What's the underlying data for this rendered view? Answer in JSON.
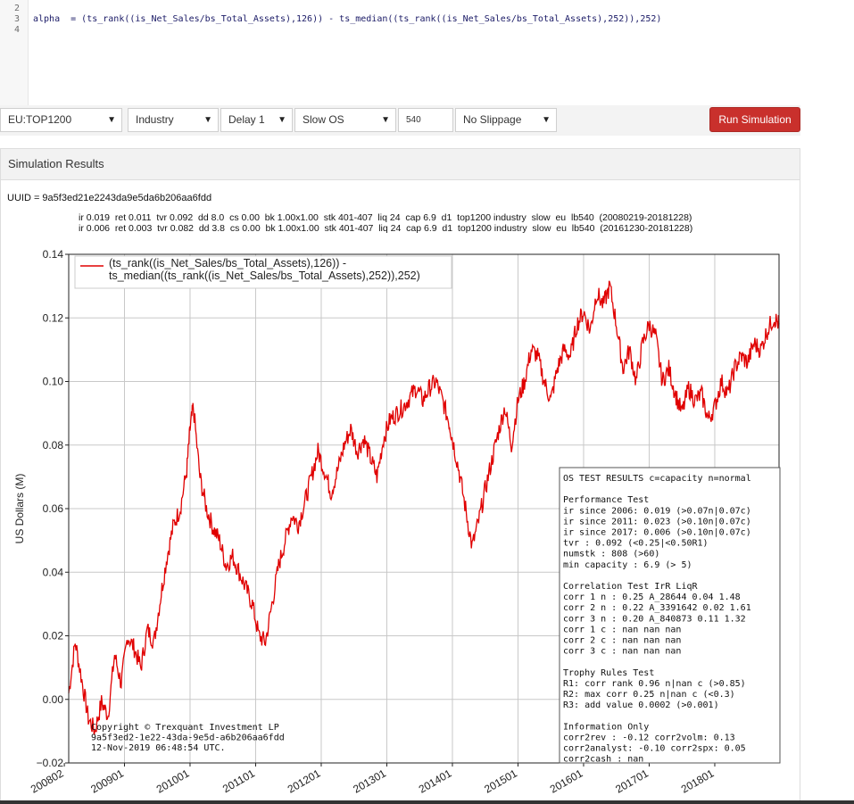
{
  "editor": {
    "line_numbers": [
      "2",
      "3",
      "4"
    ],
    "code_line": "alpha  = (ts_rank((is_Net_Sales/bs_Total_Assets),126)) - ts_median((ts_rank((is_Net_Sales/bs_Total_Assets),252)),252)"
  },
  "toolbar": {
    "universe": "EU:TOP1200",
    "neutralization": "Industry",
    "delay": "Delay 1",
    "mode": "Slow OS",
    "lookback": "540",
    "slippage": "No Slippage",
    "run_label": "Run Simulation",
    "run_color": "#c9302c"
  },
  "results": {
    "header": "Simulation Results",
    "uuid": "UUID = 9a5f3ed21e2243da9e5da6b206aa6fdd",
    "stats_line1": "ir 0.019  ret 0.011  tvr 0.092  dd 8.0  cs 0.00  bk 1.00x1.00  stk 401-407  liq 24  cap 6.9  d1  top1200 industry  slow  eu  lb540  (20080219-20181228)",
    "stats_line2": "ir 0.006  ret 0.003  tvr 0.082  dd 3.8  cs 0.00  bk 1.00x1.00  stk 401-407  liq 24  cap 6.9  d1  top1200 industry  slow  eu  lb540  (20161230-20181228)"
  },
  "chart_data": {
    "type": "line",
    "title": "",
    "xlabel": "",
    "ylabel": "US Dollars (M)",
    "ylim": [
      -0.02,
      0.14
    ],
    "yticks": [
      "0.14",
      "0.12",
      "0.10",
      "0.08",
      "0.06",
      "0.04",
      "0.02",
      "0.00",
      "−0.02"
    ],
    "xticks": [
      "200802",
      "200901",
      "201001",
      "201101",
      "201201",
      "201301",
      "201401",
      "201501",
      "201601",
      "201701",
      "201801"
    ],
    "grid": true,
    "legend_position": "top-left",
    "legend_lines": [
      "(ts_rank((is_Net_Sales/bs_Total_Assets),126)) -",
      "ts_median((ts_rank((is_Net_Sales/bs_Total_Assets),252)),252)"
    ],
    "line_color": "#e00000",
    "series": [
      {
        "x": [
          2008.15,
          2008.25,
          2008.35,
          2008.45,
          2008.55,
          2008.65,
          2008.75,
          2008.85,
          2008.95,
          2009.05,
          2009.15,
          2009.25,
          2009.35,
          2009.45,
          2009.55,
          2009.65,
          2009.75,
          2009.85,
          2009.95,
          2010.0,
          2010.05,
          2010.15,
          2010.25,
          2010.35,
          2010.45,
          2010.55,
          2010.65,
          2010.75,
          2010.85,
          2010.95,
          2011.05,
          2011.15,
          2011.25,
          2011.35,
          2011.45,
          2011.55,
          2011.65,
          2011.75,
          2011.85,
          2011.95,
          2012.05,
          2012.15,
          2012.25,
          2012.35,
          2012.45,
          2012.55,
          2012.65,
          2012.75,
          2012.85,
          2012.95,
          2013.05,
          2013.15,
          2013.25,
          2013.35,
          2013.45,
          2013.55,
          2013.65,
          2013.75,
          2013.85,
          2013.95,
          2014.0,
          2014.1,
          2014.2,
          2014.3,
          2014.4,
          2014.5,
          2014.6,
          2014.7,
          2014.8,
          2014.9,
          2015.0,
          2015.1,
          2015.2,
          2015.3,
          2015.4,
          2015.5,
          2015.6,
          2015.7,
          2015.8,
          2015.9,
          2016.0,
          2016.1,
          2016.2,
          2016.3,
          2016.4,
          2016.5,
          2016.6,
          2016.7,
          2016.8,
          2016.9,
          2017.0,
          2017.1,
          2017.2,
          2017.3,
          2017.4,
          2017.5,
          2017.6,
          2017.7,
          2017.8,
          2017.9,
          2018.0,
          2018.1,
          2018.2,
          2018.3,
          2018.4,
          2018.5,
          2018.6,
          2018.7,
          2018.8,
          2018.9,
          2018.98
        ],
        "y": [
          0.002,
          0.018,
          0.006,
          -0.006,
          -0.01,
          -0.001,
          -0.005,
          0.014,
          0.005,
          0.02,
          0.016,
          0.01,
          0.022,
          0.018,
          0.032,
          0.045,
          0.055,
          0.06,
          0.072,
          0.085,
          0.092,
          0.07,
          0.06,
          0.054,
          0.05,
          0.042,
          0.045,
          0.04,
          0.035,
          0.03,
          0.02,
          0.018,
          0.03,
          0.042,
          0.05,
          0.058,
          0.055,
          0.062,
          0.07,
          0.078,
          0.072,
          0.065,
          0.072,
          0.08,
          0.085,
          0.078,
          0.082,
          0.076,
          0.07,
          0.082,
          0.088,
          0.09,
          0.092,
          0.095,
          0.098,
          0.094,
          0.098,
          0.1,
          0.094,
          0.087,
          0.082,
          0.072,
          0.06,
          0.048,
          0.056,
          0.066,
          0.075,
          0.084,
          0.092,
          0.08,
          0.094,
          0.1,
          0.11,
          0.108,
          0.1,
          0.094,
          0.104,
          0.11,
          0.108,
          0.118,
          0.122,
          0.116,
          0.128,
          0.124,
          0.13,
          0.118,
          0.104,
          0.11,
          0.1,
          0.112,
          0.118,
          0.114,
          0.1,
          0.104,
          0.096,
          0.09,
          0.098,
          0.094,
          0.096,
          0.088,
          0.092,
          0.1,
          0.096,
          0.104,
          0.108,
          0.106,
          0.112,
          0.11,
          0.116,
          0.12,
          0.118
        ]
      }
    ]
  },
  "os_test_lines": [
    "OS TEST RESULTS c=capacity n=normal",
    "",
    "Performance Test",
    "ir since 2006:  0.019 (>0.07n|0.07c)",
    "ir since 2011:  0.023 (>0.10n|0.07c)",
    "ir since 2017:  0.006 (>0.10n|0.07c)",
    "tvr          :  0.092 (<0.25|<0.50R1)",
    "numstk       :    808 (>60)",
    "min capacity :    6.9 (>  5)",
    "",
    "Correlation Test           IrR   LiqR",
    "corr 1 n : 0.25  A_28644  0.04  1.48",
    "corr 2 n : 0.22 A_3391642  0.02  1.61",
    "corr 3 n : 0.20 A_840873  0.11  1.32",
    "corr 1 c :  nan             nan   nan",
    "corr 2 c :  nan             nan   nan",
    "corr 3 c :  nan             nan   nan",
    "",
    "Trophy Rules Test",
    "R1: corr rank     0.96 n|nan c  (>0.85)",
    "R2: max corr      0.25 n|nan c  (<0.3)",
    "R3: add value    0.0002         (>0.001)",
    "",
    "Information Only",
    "corr2rev     : -0.12  corr2volm:  0.13",
    "corr2analyst: -0.10  corr2spx:   0.05",
    "corr2cash    :   nan"
  ],
  "copyright_lines": [
    "Copyright © Trexquant Investment LP",
    "9a5f3ed2-1e22-43da-9e5d-a6b206aa6fdd",
    "12-Nov-2019 06:48:54 UTC."
  ]
}
